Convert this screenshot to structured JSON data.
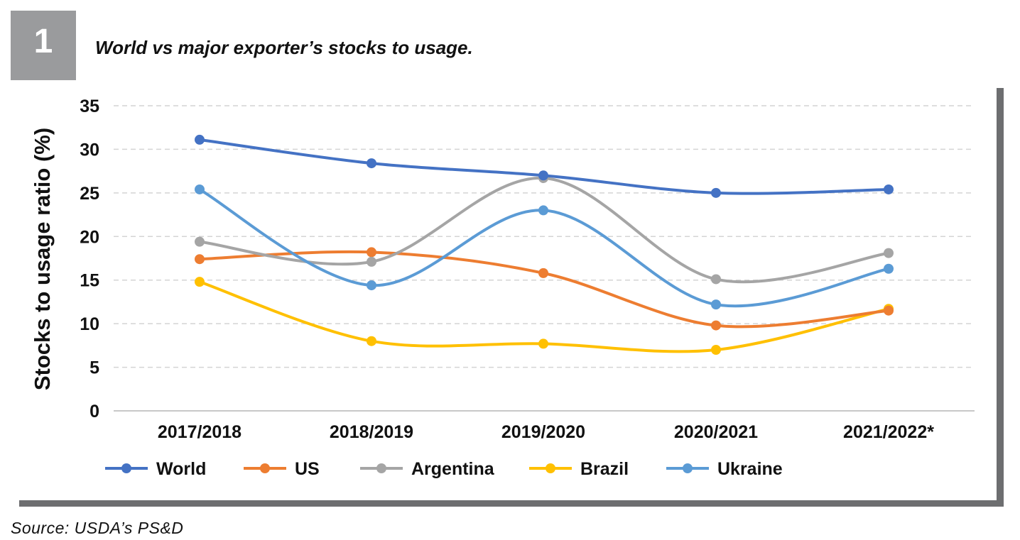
{
  "figure": {
    "number": "1",
    "title": "World vs major exporter’s stocks to usage.",
    "source": "Source: USDA’s PS&D"
  },
  "chart_data": {
    "type": "line",
    "title": "World vs major exporter’s stocks to usage.",
    "xlabel": "",
    "ylabel": "Stocks to usage ratio (%)",
    "ylim": [
      0,
      35
    ],
    "yticks": [
      0,
      5,
      10,
      15,
      20,
      25,
      30,
      35
    ],
    "grid": "horizontal dashed",
    "legend_position": "bottom",
    "categories": [
      "2017/2018",
      "2018/2019",
      "2019/2020",
      "2020/2021",
      "2021/2022*"
    ],
    "series": [
      {
        "name": "World",
        "color": "#4472c4",
        "values": [
          31.1,
          28.4,
          27.0,
          25.0,
          25.4
        ]
      },
      {
        "name": "US",
        "color": "#ed7d31",
        "values": [
          17.4,
          18.2,
          15.8,
          9.8,
          11.5
        ]
      },
      {
        "name": "Argentina",
        "color": "#a5a5a5",
        "values": [
          19.4,
          17.1,
          26.7,
          15.1,
          18.1
        ]
      },
      {
        "name": "Brazil",
        "color": "#ffc000",
        "values": [
          14.8,
          8.0,
          7.7,
          7.0,
          11.7
        ]
      },
      {
        "name": "Ukraine",
        "color": "#5b9bd5",
        "values": [
          25.4,
          14.4,
          23.0,
          12.2,
          16.3
        ]
      }
    ]
  }
}
